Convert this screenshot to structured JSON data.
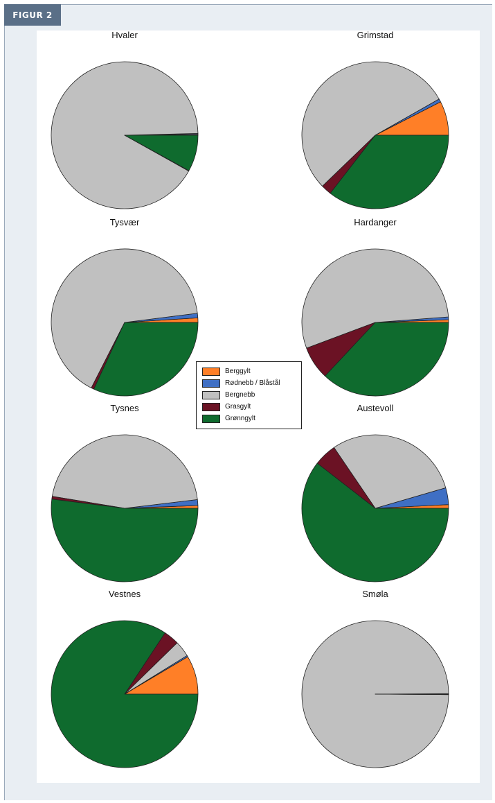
{
  "figure_label": "FIGUR 2",
  "chart_data": {
    "type": "pie",
    "categories": [
      "Berggylt",
      "Rødnebb / Blåstål",
      "Bergnebb",
      "Grasgylt",
      "Grønngylt"
    ],
    "colors": [
      "#ff7f27",
      "#3f6fc4",
      "#c0c0c0",
      "#6b1224",
      "#0f6b2e"
    ],
    "legend_position": "center",
    "pies": [
      {
        "title": "Hvaler",
        "values": [
          0.2,
          0.2,
          91.5,
          0.1,
          8.0
        ]
      },
      {
        "title": "Grimstad",
        "values": [
          7.5,
          0.7,
          54.0,
          2.3,
          35.5
        ]
      },
      {
        "title": "Tysvær",
        "values": [
          1.0,
          1.0,
          65.5,
          0.6,
          31.9
        ]
      },
      {
        "title": "Hardanger",
        "values": [
          0.6,
          0.6,
          54.5,
          7.3,
          37.0
        ]
      },
      {
        "title": "Tysnes",
        "values": [
          0.6,
          1.3,
          45.5,
          0.6,
          52.0
        ]
      },
      {
        "title": "Austevoll",
        "values": [
          0.8,
          3.7,
          30.0,
          5.0,
          60.5
        ]
      },
      {
        "title": "Vestnes",
        "values": [
          8.5,
          0.3,
          3.5,
          3.4,
          84.3
        ]
      },
      {
        "title": "Smøla",
        "values": [
          0.05,
          0.05,
          99.8,
          0.05,
          0.05
        ]
      }
    ]
  }
}
